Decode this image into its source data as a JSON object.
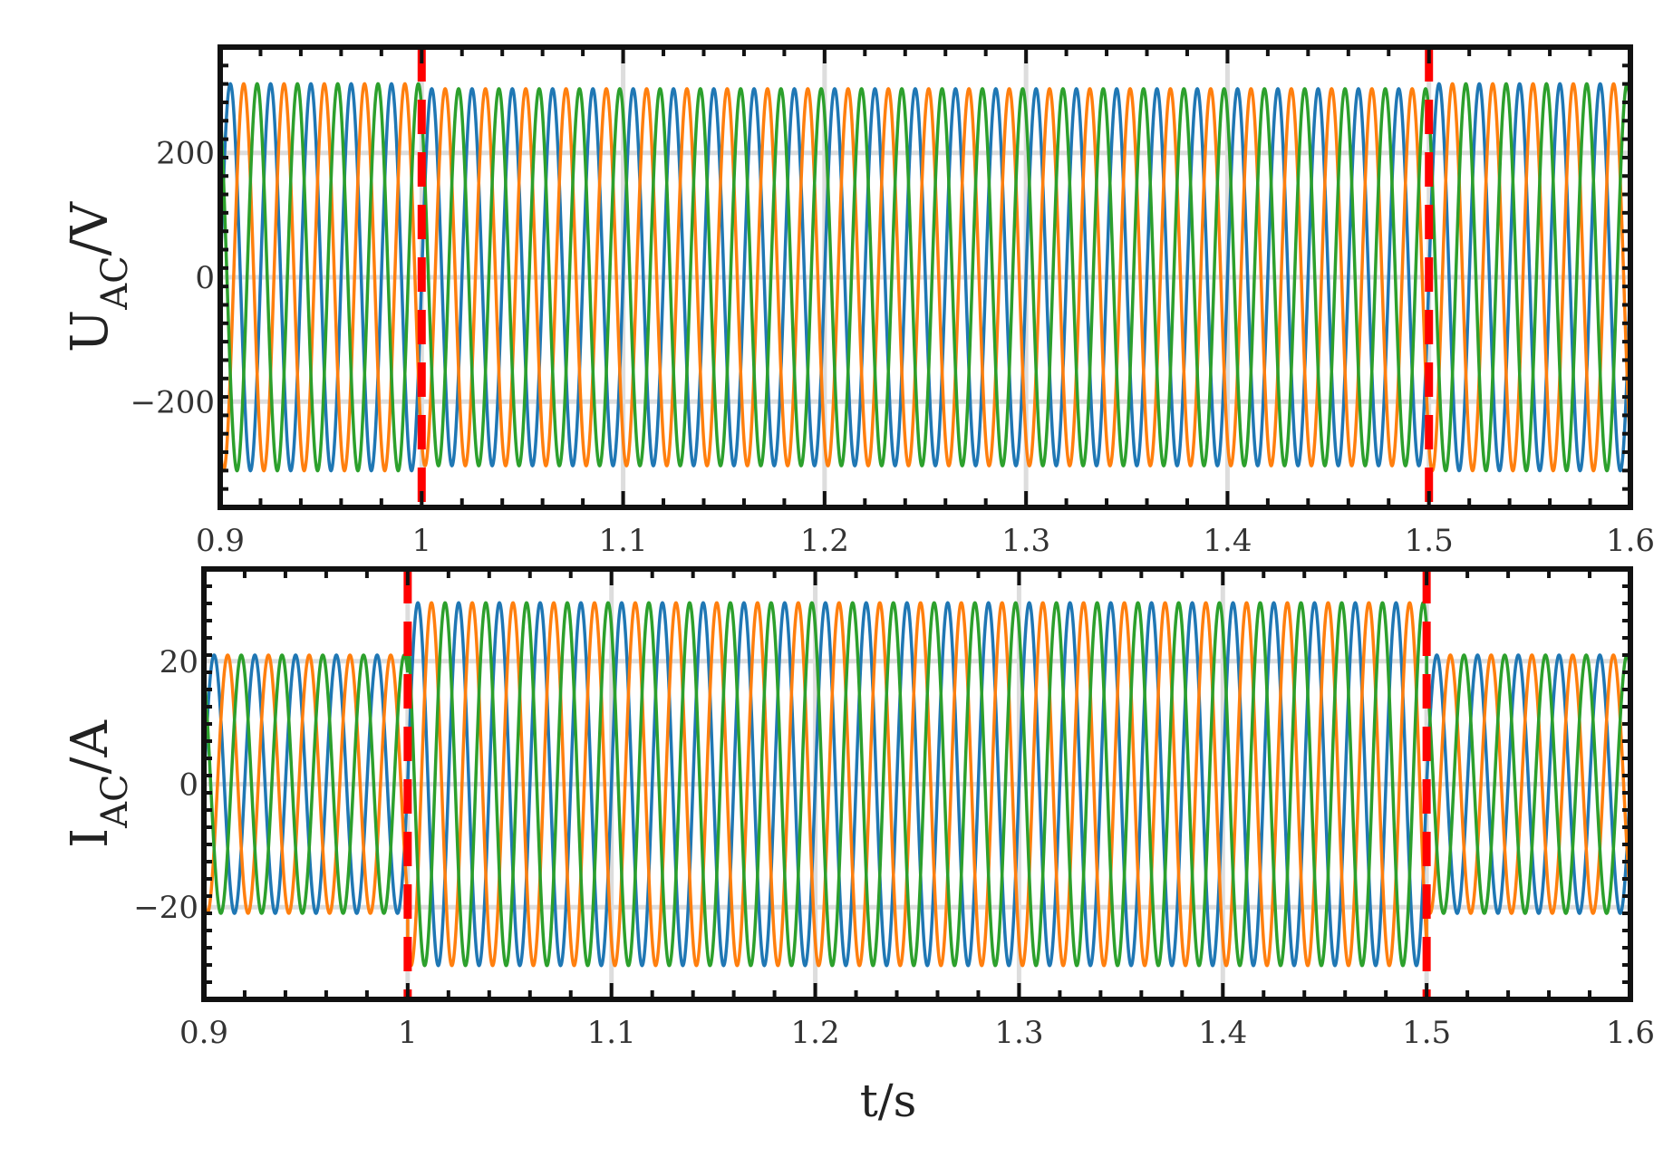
{
  "chart_data": [
    {
      "type": "line",
      "ylabel": "U_AC/V",
      "ylabel_main": "U",
      "ylabel_sub": "AC",
      "ylabel_unit": "/V",
      "xlim": [
        0.9,
        1.6
      ],
      "ylim": [
        -370,
        370
      ],
      "xticks": [
        "0.9",
        "1",
        "1.1",
        "1.2",
        "1.3",
        "1.4",
        "1.5",
        "1.6"
      ],
      "yticks": [
        {
          "value": 200,
          "label": "200"
        },
        {
          "value": 0,
          "label": "0"
        },
        {
          "value": -200,
          "label": "−200"
        }
      ],
      "grid": true,
      "frequency_hz": 50,
      "series": [
        {
          "color": "#1f77b4",
          "phase_deg": 0
        },
        {
          "color": "#ff7f0e",
          "phase_deg": -120
        },
        {
          "color": "#2ca02c",
          "phase_deg": 120
        }
      ],
      "segments": [
        {
          "t_start": 0.9,
          "t_end": 1.0,
          "amplitude": 311
        },
        {
          "t_start": 1.0,
          "t_end": 1.5,
          "amplitude": 303
        },
        {
          "t_start": 1.5,
          "t_end": 1.6,
          "amplitude": 311
        }
      ],
      "events": [
        {
          "x": 1.0,
          "color": "#ff0000"
        },
        {
          "x": 1.5,
          "color": "#ff0000"
        }
      ]
    },
    {
      "type": "line",
      "ylabel": "I_AC/A",
      "ylabel_main": "I",
      "ylabel_sub": "AC",
      "ylabel_unit": "/A",
      "xlabel": "t/s",
      "xlim": [
        0.9,
        1.6
      ],
      "ylim": [
        -35,
        35
      ],
      "xticks": [
        "0.9",
        "1",
        "1.1",
        "1.2",
        "1.3",
        "1.4",
        "1.5",
        "1.6"
      ],
      "yticks": [
        {
          "value": 20,
          "label": "20"
        },
        {
          "value": 0,
          "label": "0"
        },
        {
          "value": -20,
          "label": "−20"
        }
      ],
      "grid": true,
      "frequency_hz": 50,
      "series": [
        {
          "color": "#1f77b4",
          "phase_deg": 0
        },
        {
          "color": "#ff7f0e",
          "phase_deg": -120
        },
        {
          "color": "#2ca02c",
          "phase_deg": 120
        }
      ],
      "segments": [
        {
          "t_start": 0.9,
          "t_end": 1.0,
          "amplitude": 21
        },
        {
          "t_start": 1.0,
          "t_end": 1.5,
          "amplitude": 29.5
        },
        {
          "t_start": 1.5,
          "t_end": 1.6,
          "amplitude": 21
        }
      ],
      "events": [
        {
          "x": 1.0,
          "color": "#ff0000"
        },
        {
          "x": 1.5,
          "color": "#ff0000"
        }
      ]
    }
  ]
}
